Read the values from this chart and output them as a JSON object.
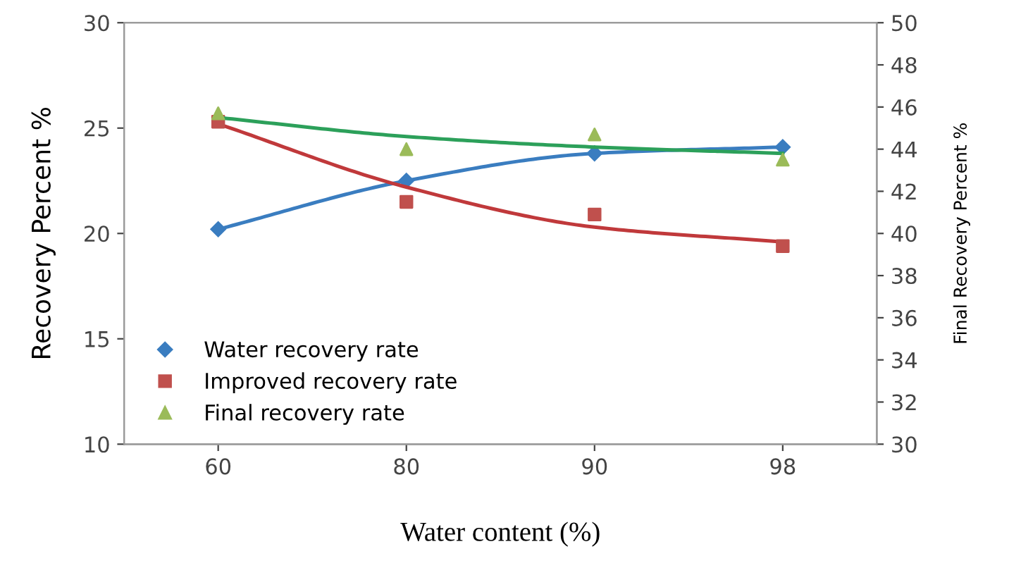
{
  "chart_data": {
    "type": "line",
    "xlabel": "Water content (%)",
    "ylabel": "Recovery Percent %",
    "y2label": "Final Recovery Percent %",
    "categories": [
      "60",
      "80",
      "90",
      "98"
    ],
    "ylim": [
      10,
      30
    ],
    "yticks": [
      10,
      15,
      20,
      25,
      30
    ],
    "y2lim": [
      30,
      50
    ],
    "y2ticks": [
      30,
      32,
      34,
      36,
      38,
      40,
      42,
      44,
      46,
      48,
      50
    ],
    "grid": false,
    "legend": "bottom left",
    "line_style": "solid",
    "series": [
      {
        "name": "Water recovery rate",
        "marker": "diamond",
        "color": "#3a7dc0",
        "values": [
          20.2,
          22.5,
          23.8,
          24.1
        ]
      },
      {
        "name": "Improved recovery rate",
        "type": "scatter",
        "marker": "square",
        "color": "#c0504d",
        "values": [
          25.3,
          21.5,
          20.9,
          19.4
        ]
      },
      {
        "marker": "none",
        "color": "#c0393b",
        "values": [
          25.2,
          22.2,
          20.3,
          19.6
        ]
      },
      {
        "name": "Final recovery rate",
        "type": "scatter",
        "marker": "triangle",
        "axis": "y2",
        "color": "#9bbb59",
        "values": [
          45.7,
          44.0,
          44.7,
          43.5
        ]
      },
      {
        "marker": "none",
        "axis": "y2",
        "color": "#2ca05a",
        "values": [
          45.5,
          44.6,
          44.1,
          43.8
        ]
      }
    ]
  }
}
